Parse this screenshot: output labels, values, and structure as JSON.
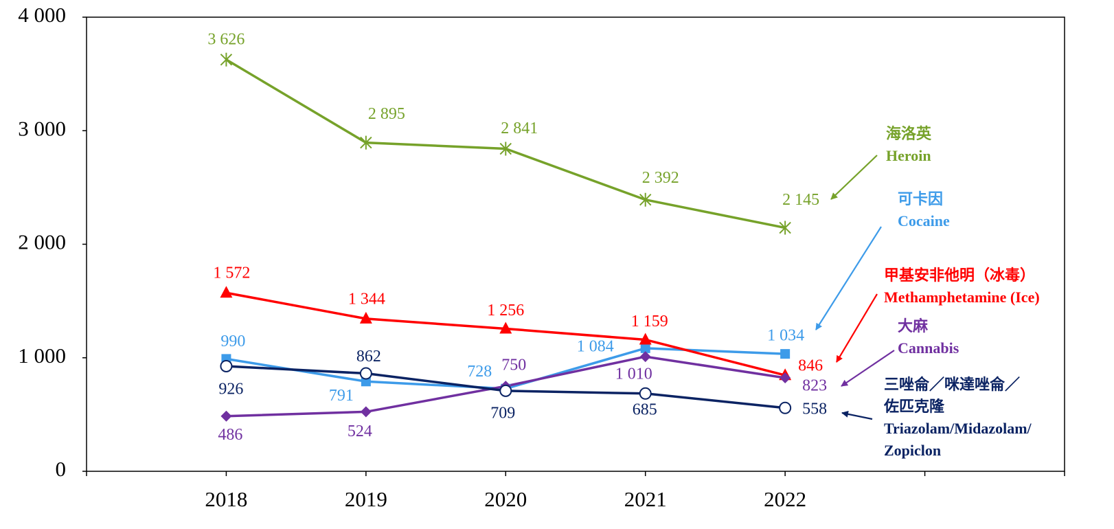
{
  "chart_data": {
    "type": "line",
    "categories": [
      null,
      "2018",
      "2019",
      "2020",
      "2021",
      "2022",
      null,
      null
    ],
    "ylim": [
      0,
      4000
    ],
    "yticks": [
      0,
      {
        "value": 1000,
        "label": "1 000"
      },
      {
        "value": 2000,
        "label": "2 000"
      },
      {
        "value": 3000,
        "label": "3 000"
      },
      {
        "value": 4000,
        "label": "4 000"
      }
    ],
    "series": [
      {
        "name": "Heroin",
        "name_zh": "海洛英",
        "color": "#76a22a",
        "marker": "asterisk",
        "values": [
          null,
          3626,
          2895,
          2841,
          2392,
          2145,
          null,
          null
        ],
        "value_labels": [
          null,
          "3 626",
          "2 895",
          "2 841",
          "2 392",
          "2 145",
          null,
          null
        ]
      },
      {
        "name": "Cocaine",
        "name_zh": "可卡因",
        "color": "#3d9be9",
        "marker": "square",
        "values": [
          null,
          990,
          791,
          728,
          1084,
          1034,
          null,
          null
        ],
        "value_labels": [
          null,
          "990",
          "791",
          "728",
          "1 084",
          "1 034",
          null,
          null
        ]
      },
      {
        "name": "Methamphetamine (Ice)",
        "name_zh": "甲基安非他明（冰毒）",
        "color": "#ff0000",
        "marker": "triangle",
        "values": [
          null,
          1572,
          1344,
          1256,
          1159,
          846,
          null,
          null
        ],
        "value_labels": [
          null,
          "1 572",
          "1 344",
          "1 256",
          "1 159",
          "846",
          null,
          null
        ]
      },
      {
        "name": "Cannabis",
        "name_zh": "大麻",
        "color": "#7030a0",
        "marker": "diamond",
        "values": [
          null,
          486,
          524,
          750,
          1010,
          823,
          null,
          null
        ],
        "value_labels": [
          null,
          "486",
          "524",
          "750",
          "1 010",
          "823",
          null,
          null
        ]
      },
      {
        "name": "Triazolam/Midazolam/Zopiclon",
        "name_zh": "三唑侖／咪達唑侖／佐匹克隆",
        "color": "#0b2363",
        "marker": "circle-open",
        "values": [
          null,
          926,
          862,
          709,
          685,
          558,
          null,
          null
        ],
        "value_labels": [
          null,
          "926",
          "862",
          "709",
          "685",
          "558",
          null,
          null
        ]
      }
    ]
  }
}
